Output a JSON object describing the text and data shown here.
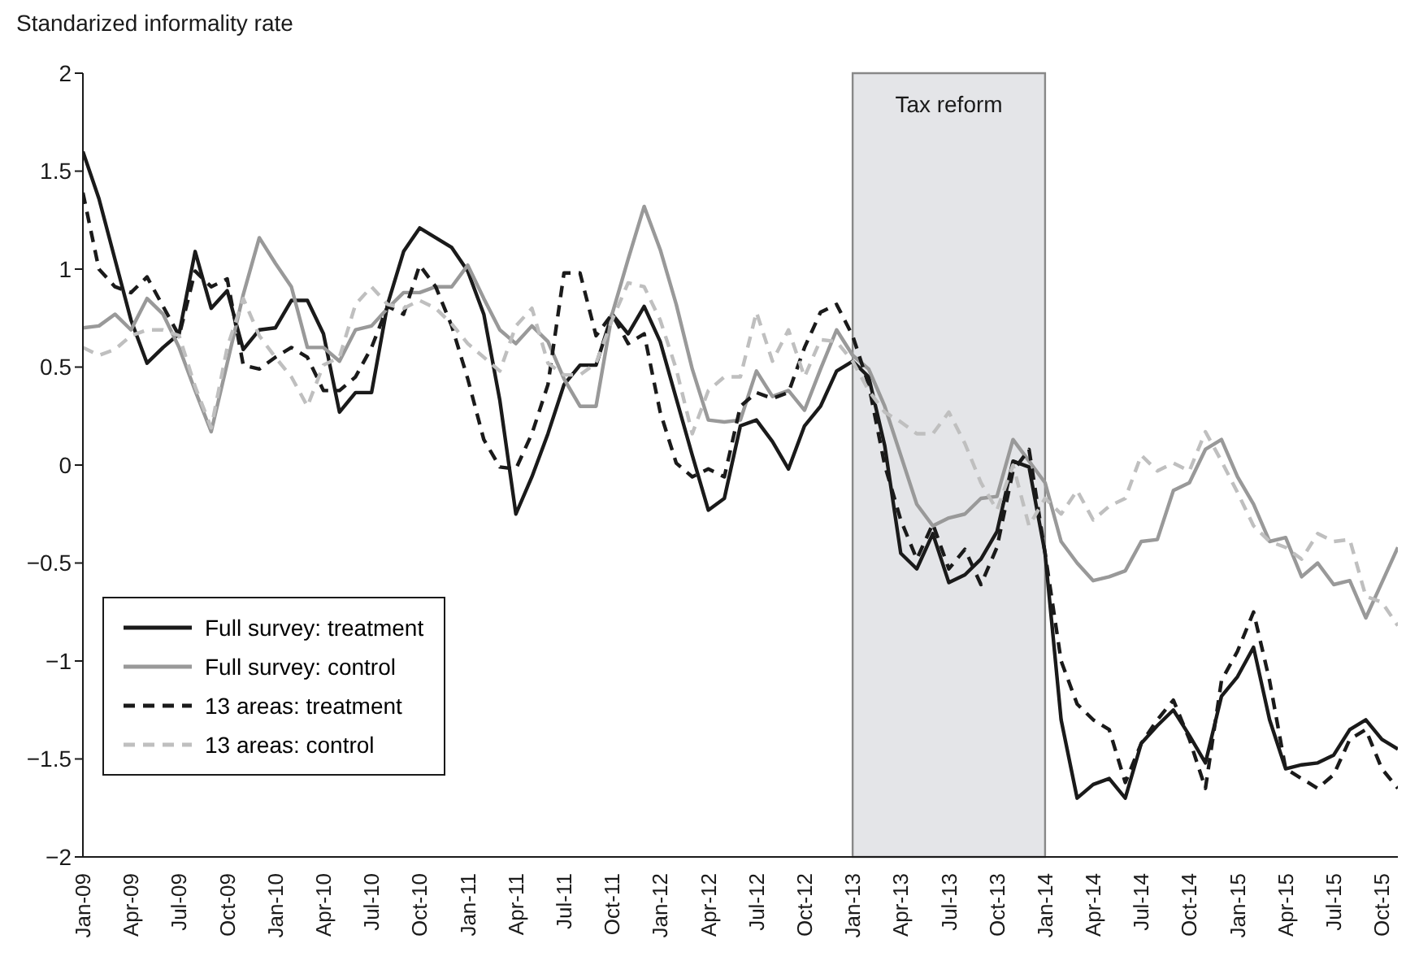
{
  "chart_data": {
    "type": "line",
    "ylabel": "Standarized informality rate",
    "categories": [
      "Jan-09",
      null,
      null,
      "Apr-09",
      null,
      null,
      "Jul-09",
      null,
      null,
      "Oct-09",
      null,
      null,
      "Jan-10",
      null,
      null,
      "Apr-10",
      null,
      null,
      "Jul-10",
      null,
      null,
      "Oct-10",
      null,
      null,
      "Jan-11",
      null,
      null,
      "Apr-11",
      null,
      null,
      "Jul-11",
      null,
      null,
      "Oct-11",
      null,
      null,
      "Jan-12",
      null,
      null,
      "Apr-12",
      null,
      null,
      "Jul-12",
      null,
      null,
      "Oct-12",
      null,
      null,
      "Jan-13",
      null,
      null,
      "Apr-13",
      null,
      null,
      "Jul-13",
      null,
      null,
      "Oct-13",
      null,
      null,
      "Jan-14",
      null,
      null,
      "Apr-14",
      null,
      null,
      "Jul-14",
      null,
      null,
      "Oct-14",
      null,
      null,
      "Jan-15",
      null,
      null,
      "Apr-15",
      null,
      null,
      "Jul-15",
      null,
      null,
      "Oct-15",
      null
    ],
    "series": [
      {
        "name": "Full survey: treatment",
        "color": "#1a1a1a",
        "line_style": "solid",
        "values": [
          1.6,
          1.36,
          1.05,
          0.74,
          0.52,
          0.6,
          0.67,
          1.09,
          0.8,
          0.89,
          0.59,
          0.69,
          0.7,
          0.84,
          0.84,
          0.67,
          0.27,
          0.37,
          0.37,
          0.82,
          1.09,
          1.21,
          1.16,
          1.11,
          0.99,
          0.77,
          0.33,
          -0.25,
          -0.06,
          0.16,
          0.41,
          0.51,
          0.51,
          0.77,
          0.67,
          0.81,
          0.63,
          0.34,
          0.05,
          -0.23,
          -0.17,
          0.2,
          0.23,
          0.12,
          -0.02,
          0.2,
          0.3,
          0.48,
          0.53,
          0.45,
          0.1,
          -0.45,
          -0.53,
          -0.35,
          -0.6,
          -0.56,
          -0.48,
          -0.34,
          0.02,
          -0.01,
          -0.45,
          -1.3,
          -1.7,
          -1.63,
          -1.6,
          -1.7,
          -1.42,
          -1.33,
          -1.25,
          -1.38,
          -1.52,
          -1.18,
          -1.08,
          -0.93,
          -1.3,
          -1.55,
          -1.53,
          -1.52,
          -1.48,
          -1.35,
          -1.3,
          -1.4,
          -1.45
        ]
      },
      {
        "name": "Full survey: control",
        "color": "#999999",
        "line_style": "solid",
        "values": [
          0.7,
          0.71,
          0.77,
          0.69,
          0.85,
          0.77,
          0.6,
          0.38,
          0.17,
          0.52,
          0.87,
          1.16,
          1.03,
          0.91,
          0.6,
          0.6,
          0.53,
          0.69,
          0.71,
          0.8,
          0.88,
          0.88,
          0.91,
          0.91,
          1.02,
          0.85,
          0.69,
          0.62,
          0.71,
          0.63,
          0.44,
          0.3,
          0.3,
          0.77,
          1.05,
          1.32,
          1.1,
          0.82,
          0.49,
          0.23,
          0.22,
          0.23,
          0.48,
          0.35,
          0.38,
          0.28,
          0.49,
          0.69,
          0.56,
          0.49,
          0.3,
          0.05,
          -0.2,
          -0.31,
          -0.27,
          -0.25,
          -0.17,
          -0.16,
          0.13,
          0.02,
          -0.09,
          -0.39,
          -0.5,
          -0.59,
          -0.57,
          -0.54,
          -0.39,
          -0.38,
          -0.13,
          -0.09,
          0.08,
          0.13,
          -0.06,
          -0.2,
          -0.39,
          -0.37,
          -0.57,
          -0.5,
          -0.61,
          -0.59,
          -0.78,
          -0.6,
          -0.42
        ]
      },
      {
        "name": "13 areas: treatment",
        "color": "#1a1a1a",
        "line_style": "dashed",
        "values": [
          1.39,
          1.0,
          0.91,
          0.88,
          0.96,
          0.81,
          0.66,
          0.99,
          0.91,
          0.95,
          0.51,
          0.49,
          0.55,
          0.6,
          0.55,
          0.38,
          0.38,
          0.45,
          0.6,
          0.81,
          0.77,
          1.02,
          0.91,
          0.71,
          0.44,
          0.13,
          -0.01,
          -0.02,
          0.16,
          0.41,
          0.98,
          0.98,
          0.66,
          0.77,
          0.62,
          0.67,
          0.27,
          0.01,
          -0.06,
          -0.02,
          -0.06,
          0.3,
          0.37,
          0.34,
          0.37,
          0.6,
          0.78,
          0.82,
          0.66,
          0.41,
          0.0,
          -0.28,
          -0.48,
          -0.3,
          -0.53,
          -0.43,
          -0.61,
          -0.42,
          -0.03,
          0.08,
          -0.45,
          -1.0,
          -1.22,
          -1.3,
          -1.35,
          -1.62,
          -1.42,
          -1.3,
          -1.2,
          -1.4,
          -1.65,
          -1.1,
          -0.95,
          -0.75,
          -1.1,
          -1.55,
          -1.6,
          -1.65,
          -1.58,
          -1.4,
          -1.35,
          -1.55,
          -1.65
        ]
      },
      {
        "name": "13 areas: control",
        "color": "#bfbfbf",
        "line_style": "dashed",
        "values": [
          0.6,
          0.56,
          0.59,
          0.66,
          0.69,
          0.69,
          0.66,
          0.4,
          0.19,
          0.6,
          0.85,
          0.66,
          0.55,
          0.45,
          0.3,
          0.51,
          0.55,
          0.82,
          0.91,
          0.82,
          0.8,
          0.84,
          0.8,
          0.72,
          0.62,
          0.55,
          0.48,
          0.71,
          0.8,
          0.52,
          0.46,
          0.46,
          0.52,
          0.74,
          0.93,
          0.91,
          0.74,
          0.49,
          0.16,
          0.38,
          0.45,
          0.45,
          0.78,
          0.53,
          0.69,
          0.45,
          0.64,
          0.63,
          0.53,
          0.38,
          0.27,
          0.22,
          0.16,
          0.16,
          0.27,
          0.11,
          -0.09,
          -0.23,
          0.0,
          -0.31,
          -0.17,
          -0.25,
          -0.13,
          -0.28,
          -0.21,
          -0.17,
          0.05,
          -0.03,
          0.01,
          -0.03,
          0.17,
          0.02,
          -0.14,
          -0.31,
          -0.39,
          -0.42,
          -0.48,
          -0.35,
          -0.39,
          -0.38,
          -0.67,
          -0.7,
          -0.82
        ]
      }
    ],
    "ylim": [
      -2,
      2
    ],
    "yticks": [
      {
        "value": -2,
        "label": "−2"
      },
      {
        "value": -1.5,
        "label": "−1.5"
      },
      {
        "value": -1,
        "label": "−1"
      },
      {
        "value": -0.5,
        "label": "−0.5"
      },
      0,
      0.5,
      1,
      1.5,
      2
    ],
    "bands": [
      {
        "axis": "x",
        "from": "Jan-13",
        "to": "Jan-14",
        "label": "Tax reform",
        "color": "#e4e5e8"
      }
    ],
    "grid": false,
    "legend": "bottom left"
  }
}
